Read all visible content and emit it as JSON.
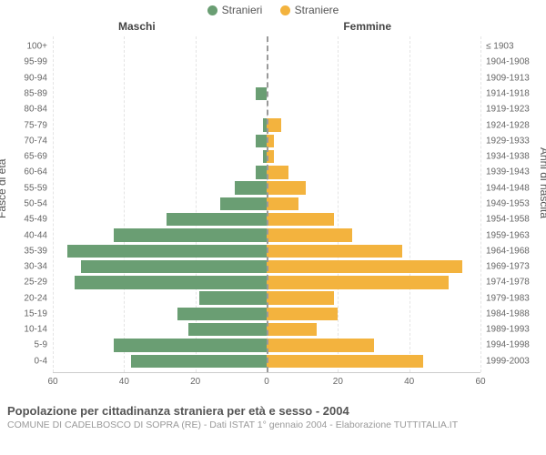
{
  "legend": {
    "male": {
      "label": "Stranieri",
      "color": "#6a9e73"
    },
    "female": {
      "label": "Straniere",
      "color": "#f3b33e"
    }
  },
  "headers": {
    "left": "Maschi",
    "right": "Femmine"
  },
  "axis_titles": {
    "left": "Fasce di età",
    "right": "Anni di nascita"
  },
  "chart": {
    "type": "population-pyramid",
    "background_color": "#ffffff",
    "grid_color": "#e4e4e4",
    "center_line_color": "#999999",
    "xmax": 60,
    "xtick_step": 20,
    "xticks_left": [
      60,
      40,
      20,
      0
    ],
    "xticks_right": [
      0,
      20,
      40,
      60
    ],
    "age_labels": [
      "100+",
      "95-99",
      "90-94",
      "85-89",
      "80-84",
      "75-79",
      "70-74",
      "65-69",
      "60-64",
      "55-59",
      "50-54",
      "45-49",
      "40-44",
      "35-39",
      "30-34",
      "25-29",
      "20-24",
      "15-19",
      "10-14",
      "5-9",
      "0-4"
    ],
    "year_labels": [
      "≤ 1903",
      "1904-1908",
      "1909-1913",
      "1914-1918",
      "1919-1923",
      "1924-1928",
      "1929-1933",
      "1934-1938",
      "1939-1943",
      "1944-1948",
      "1949-1953",
      "1954-1958",
      "1959-1963",
      "1964-1968",
      "1969-1973",
      "1974-1978",
      "1979-1983",
      "1984-1988",
      "1989-1993",
      "1994-1998",
      "1999-2003"
    ],
    "male_values": [
      0,
      0,
      0,
      3,
      0,
      1,
      3,
      1,
      3,
      9,
      13,
      28,
      43,
      56,
      52,
      54,
      19,
      25,
      22,
      43,
      38
    ],
    "female_values": [
      0,
      0,
      0,
      0,
      0,
      4,
      2,
      2,
      6,
      11,
      9,
      19,
      24,
      38,
      55,
      51,
      19,
      20,
      14,
      30,
      44
    ]
  },
  "footer": {
    "title": "Popolazione per cittadinanza straniera per età e sesso - 2004",
    "subtitle": "COMUNE DI CADELBOSCO DI SOPRA (RE) - Dati ISTAT 1° gennaio 2004 - Elaborazione TUTTITALIA.IT"
  }
}
